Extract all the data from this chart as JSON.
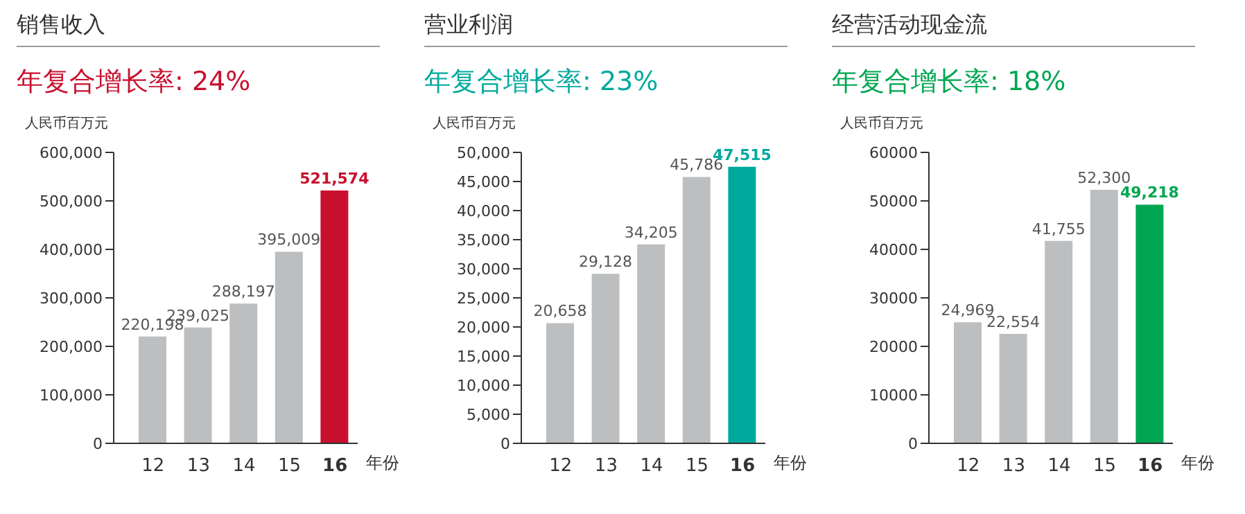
{
  "chart_data": [
    {
      "type": "bar",
      "title": "销售收入",
      "subtitle": "年复合增长率: 24%",
      "ylabel": "人民币百万元",
      "xlabel": "年份",
      "categories": [
        "12",
        "13",
        "14",
        "15",
        "16"
      ],
      "values": [
        220198,
        239025,
        288197,
        395009,
        521574
      ],
      "colors": [
        "#bcbec0",
        "#bcbec0",
        "#bcbec0",
        "#bcbec0",
        "#c8102e"
      ],
      "value_labels": [
        "220,198",
        "239,025",
        "288,197",
        "395,009",
        "521,574"
      ],
      "ylim": [
        0,
        600000
      ],
      "yticks": [
        0,
        {
          "value": 100000,
          "label": "100,000"
        },
        {
          "value": 200000,
          "label": "200,000"
        },
        {
          "value": 300000,
          "label": "300,000"
        },
        {
          "value": 400000,
          "label": "400,000"
        },
        {
          "value": 500000,
          "label": "500,000"
        },
        {
          "value": 600000,
          "label": "600,000"
        }
      ],
      "grid": false,
      "legend": false
    },
    {
      "type": "bar",
      "title": "营业利润",
      "subtitle": "年复合增长率: 23%",
      "ylabel": "人民币百万元",
      "xlabel": "年份",
      "categories": [
        "12",
        "13",
        "14",
        "15",
        "16"
      ],
      "values": [
        20658,
        29128,
        34205,
        45786,
        47515
      ],
      "colors": [
        "#bcbec0",
        "#bcbec0",
        "#bcbec0",
        "#bcbec0",
        "#00a99d"
      ],
      "value_labels": [
        "20,658",
        "29,128",
        "34,205",
        "45,786",
        "47,515"
      ],
      "ylim": [
        0,
        50000
      ],
      "yticks": [
        0,
        {
          "value": 5000,
          "label": "5,000"
        },
        {
          "value": 10000,
          "label": "10,000"
        },
        {
          "value": 15000,
          "label": "15,000"
        },
        {
          "value": 20000,
          "label": "20,000"
        },
        {
          "value": 25000,
          "label": "25,000"
        },
        {
          "value": 30000,
          "label": "30,000"
        },
        {
          "value": 35000,
          "label": "35,000"
        },
        {
          "value": 40000,
          "label": "40,000"
        },
        {
          "value": 45000,
          "label": "45,000"
        },
        {
          "value": 50000,
          "label": "50,000"
        }
      ],
      "grid": false,
      "legend": false
    },
    {
      "type": "bar",
      "title": "经营活动现金流",
      "subtitle": "年复合增长率: 18%",
      "ylabel": "人民币百万元",
      "xlabel": "年份",
      "categories": [
        "12",
        "13",
        "14",
        "15",
        "16"
      ],
      "values": [
        24969,
        22554,
        41755,
        52300,
        49218
      ],
      "colors": [
        "#bcbec0",
        "#bcbec0",
        "#bcbec0",
        "#bcbec0",
        "#00a651"
      ],
      "value_labels": [
        "24,969",
        "22,554",
        "41,755",
        "52,300",
        "49,218"
      ],
      "ylim": [
        0,
        60000
      ],
      "yticks": [
        0,
        10000,
        20000,
        30000,
        40000,
        50000,
        60000
      ],
      "grid": false,
      "legend": false
    }
  ]
}
